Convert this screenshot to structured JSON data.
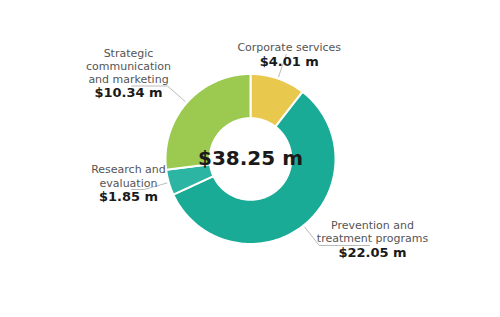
{
  "chart_data": {
    "type": "pie",
    "center_label": "$38.25 m",
    "categories": [
      "Corporate services",
      "Prevention and\ntreatment programs",
      "Research and\nevaluation",
      "Strategic\ncommunication\nand marketing"
    ],
    "values": [
      4.01,
      22.05,
      1.85,
      10.34
    ],
    "value_labels": [
      "$4.01 m",
      "$22.05 m",
      "$1.85 m",
      "$10.34 m"
    ],
    "colors": [
      "#e8c94e",
      "#1aab96",
      "#2db5a3",
      "#9cc94f"
    ],
    "data_labels": true
  }
}
